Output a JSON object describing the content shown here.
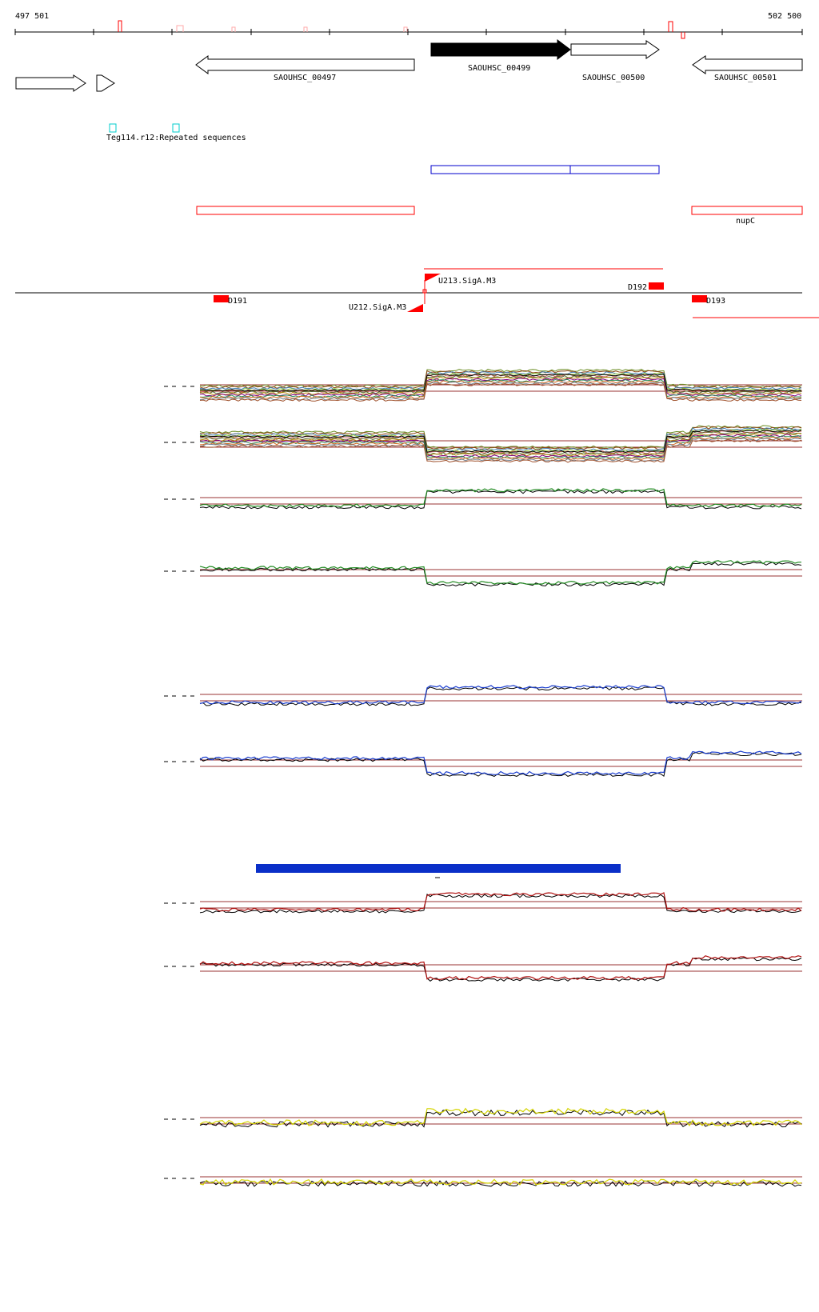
{
  "coordinates": {
    "start": "497 501",
    "end": "502 500"
  },
  "genes": [
    {
      "id": "SAOUHSC_00497",
      "label": "SAOUHSC_00497",
      "strand": "-"
    },
    {
      "id": "SAOUHSC_00499",
      "label": "SAOUHSC_00499",
      "strand": "+",
      "highlighted": true
    },
    {
      "id": "SAOUHSC_00500",
      "label": "SAOUHSC_00500",
      "strand": "+"
    },
    {
      "id": "SAOUHSC_00501",
      "label": "SAOUHSC_00501",
      "strand": "-"
    }
  ],
  "repeat_label": "Teg114.r12:Repeated sequences",
  "operon_label": "nupC",
  "features": [
    {
      "id": "D191",
      "label": "D191"
    },
    {
      "id": "U212",
      "label": "U212.SigA.M3"
    },
    {
      "id": "U213",
      "label": "U213.SigA.M3"
    },
    {
      "id": "D192",
      "label": "D192"
    },
    {
      "id": "D193",
      "label": "D193"
    }
  ],
  "colors": {
    "feature_red": "#ff0000",
    "operon_blue": "#0000cc",
    "repeat_cyan": "#00cccc",
    "threshold_line": "#993333",
    "track_green": "#228b22",
    "track_blue": "#1c3fcf",
    "track_red": "#b01010",
    "track_yellow": "#d4d400",
    "bar_blue": "#0a2fc8"
  },
  "tracks": [
    {
      "id": "multi-plus",
      "style": "multi",
      "profile": "up-mid"
    },
    {
      "id": "multi-minus",
      "style": "multi",
      "profile": "down-mid"
    },
    {
      "id": "green-plus",
      "style": "pair",
      "color": "track_green",
      "profile": "up-mid"
    },
    {
      "id": "green-minus",
      "style": "pair",
      "color": "track_green",
      "profile": "down-mid"
    },
    {
      "id": "blue-plus",
      "style": "pair",
      "color": "track_blue",
      "profile": "up-mid"
    },
    {
      "id": "blue-minus",
      "style": "pair",
      "color": "track_blue",
      "profile": "down-mid"
    },
    {
      "id": "red-plus",
      "style": "pair",
      "color": "track_red",
      "profile": "up-mid"
    },
    {
      "id": "red-minus",
      "style": "pair",
      "color": "track_red",
      "profile": "down-mid"
    },
    {
      "id": "yellow-plus",
      "style": "pair",
      "color": "track_yellow",
      "profile": "up-mid-noisy"
    },
    {
      "id": "yellow-minus",
      "style": "pair",
      "color": "track_yellow",
      "profile": "flat-noisy"
    }
  ]
}
